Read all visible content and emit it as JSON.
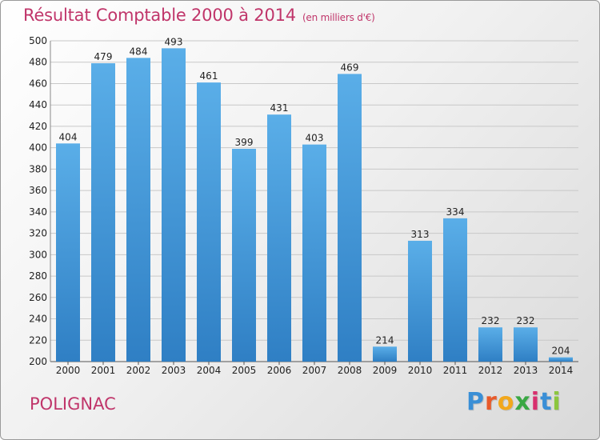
{
  "title": "Résultat Comptable 2000 à 2014",
  "subtitle": "(en milliers d'€)",
  "town": "POLIGNAC",
  "logo": {
    "letters": [
      "P",
      "r",
      "o",
      "x",
      "i",
      "t",
      "i"
    ],
    "colors": [
      "#3a8fd6",
      "#e85a2a",
      "#f2a81d",
      "#3aa844",
      "#d8306e",
      "#3a8fd6",
      "#8cc63f"
    ]
  },
  "colors": {
    "bar_top": "#5aaee8",
    "bar_bottom": "#2f7fc4",
    "title": "#c0356a"
  },
  "chart_data": {
    "type": "bar",
    "categories": [
      "2000",
      "2001",
      "2002",
      "2003",
      "2004",
      "2005",
      "2006",
      "2007",
      "2008",
      "2009",
      "2010",
      "2011",
      "2012",
      "2013",
      "2014"
    ],
    "values": [
      404,
      479,
      484,
      493,
      461,
      399,
      431,
      403,
      469,
      214,
      313,
      334,
      232,
      232,
      204
    ],
    "ylim": [
      200,
      500
    ],
    "yticks": [
      200,
      220,
      240,
      260,
      280,
      300,
      320,
      340,
      360,
      380,
      400,
      420,
      440,
      460,
      480,
      500
    ],
    "grid": true,
    "title": "Résultat Comptable 2000 à 2014",
    "xlabel": "",
    "ylabel": ""
  }
}
